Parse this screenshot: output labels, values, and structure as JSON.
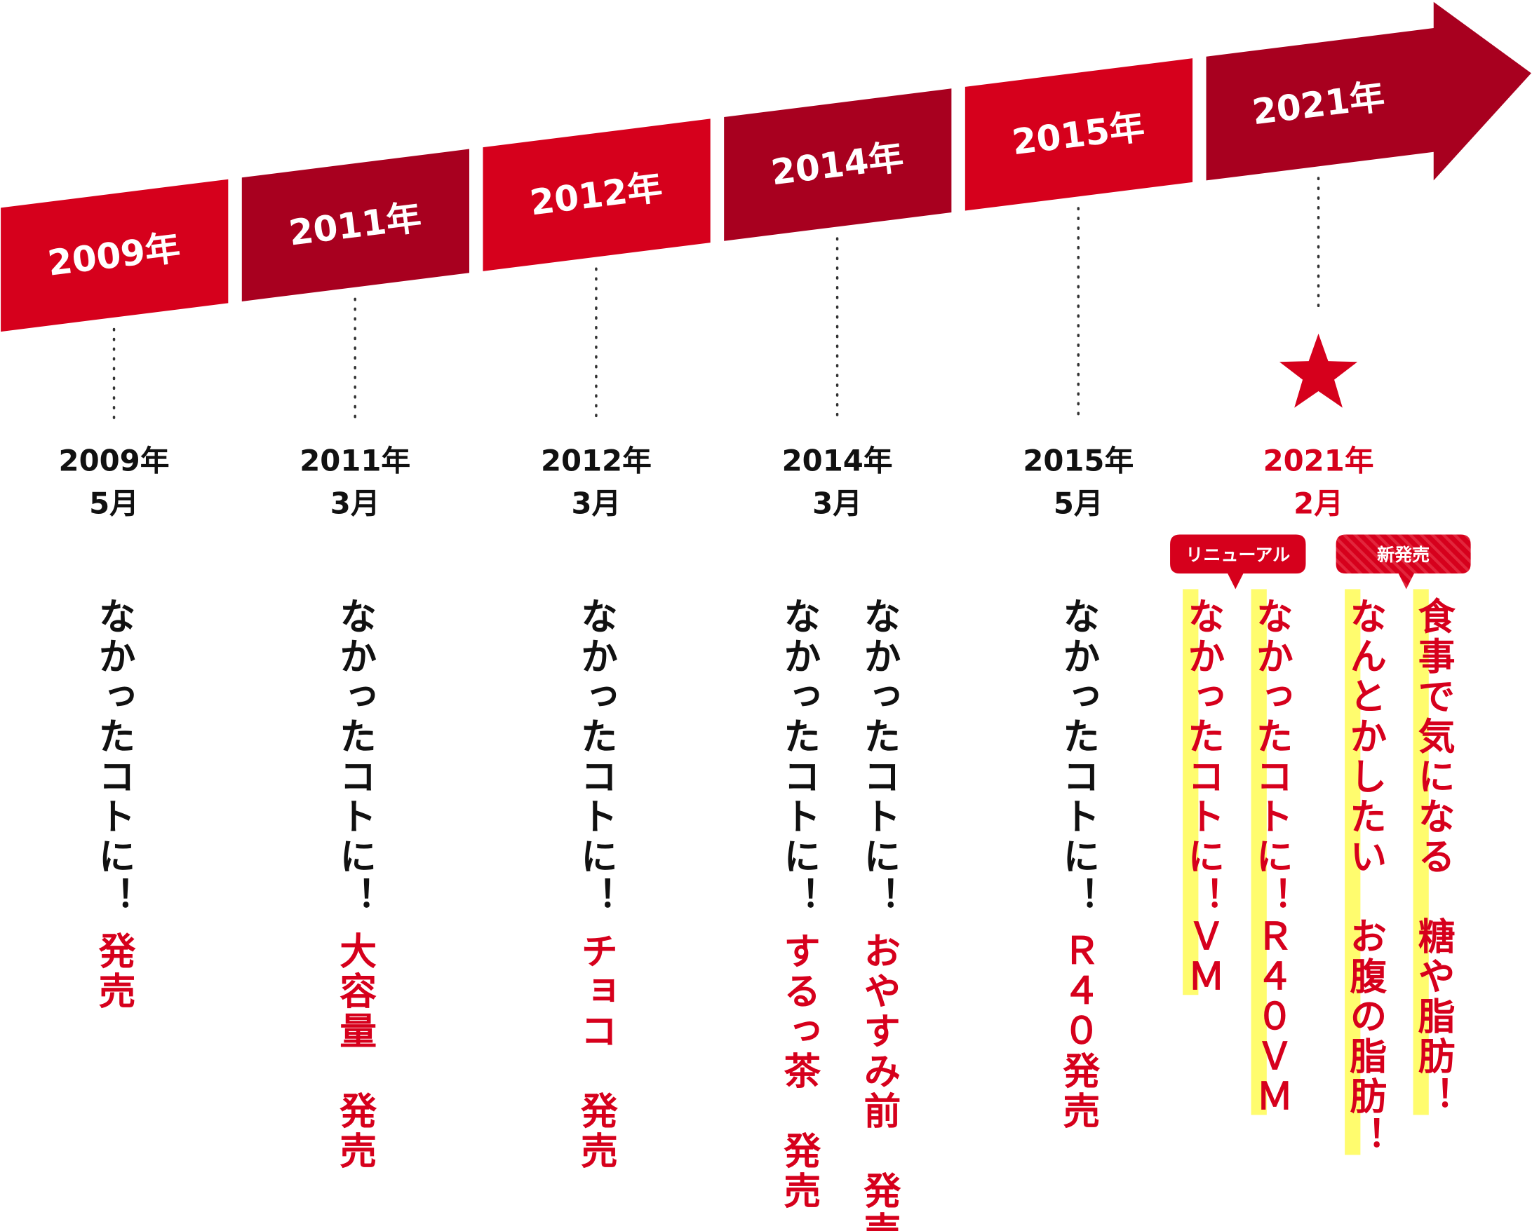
{
  "timeline": [
    {
      "year": "2009年",
      "date": [
        "2009年",
        "5月"
      ],
      "products": [
        {
          "name": "なかったコトに！",
          "label": "発売"
        }
      ]
    },
    {
      "year": "2011年",
      "date": [
        "2011年",
        "3月"
      ],
      "products": [
        {
          "name": "なかったコトに！",
          "label": "大容量　発売"
        }
      ]
    },
    {
      "year": "2012年",
      "date": [
        "2012年",
        "3月"
      ],
      "products": [
        {
          "name": "なかったコトに！",
          "label": "チョコ　発売"
        }
      ]
    },
    {
      "year": "2014年",
      "date": [
        "2014年",
        "3月"
      ],
      "products": [
        {
          "name": "なかったコトに！",
          "label": "するっ茶　発売"
        },
        {
          "name": "なかったコトに！",
          "label": "おやすみ前　発売"
        }
      ]
    },
    {
      "year": "2015年",
      "date": [
        "2015年",
        "5月"
      ],
      "products": [
        {
          "name": "なかったコトに！",
          "label": "Ｒ４０発売"
        }
      ]
    },
    {
      "year": "2021年",
      "date": [
        "2021年",
        "2月"
      ],
      "groups": [
        {
          "badge": "リニューアル",
          "products": [
            "なかったコトに！ＶＭ",
            "なかったコトに！Ｒ４０ＶＭ"
          ]
        },
        {
          "badge": "新発売",
          "products": [
            "なんとかしたい　お腹の脂肪！",
            "食事で気になる　糖や脂肪！"
          ]
        }
      ]
    }
  ]
}
